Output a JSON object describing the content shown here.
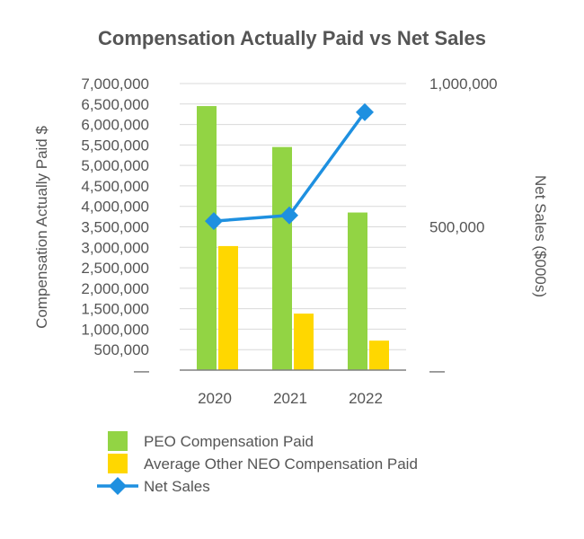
{
  "chart_data": {
    "type": "bar",
    "title": "Compensation Actually Paid vs Net Sales",
    "categories": [
      "2020",
      "2021",
      "2022"
    ],
    "ylabel": "Compensation Actually Paid $",
    "y2label": "Net Sales ($000s)",
    "ylim": [
      0,
      7000000
    ],
    "y2lim": [
      0,
      1000000
    ],
    "y_ticks": [
      "—",
      "500,000",
      "1,000,000",
      "1,500,000",
      "2,000,000",
      "2,500,000",
      "3,000,000",
      "3,500,000",
      "4,000,000",
      "4,500,000",
      "5,000,000",
      "5,500,000",
      "6,000,000",
      "6,500,000",
      "7,000,000"
    ],
    "y2_ticks": [
      "—",
      "500,000",
      "1,000,000"
    ],
    "grid": true,
    "legend_position": "bottom",
    "series": [
      {
        "name": "PEO Compensation Paid",
        "type": "bar",
        "axis": "left",
        "color": "#92d444",
        "values": [
          6450000,
          5450000,
          3850000
        ]
      },
      {
        "name": "Average Other NEO Compensation Paid",
        "type": "bar",
        "axis": "left",
        "color": "#ffd700",
        "values": [
          3030000,
          1380000,
          720000
        ]
      },
      {
        "name": "Net Sales",
        "type": "line",
        "axis": "right",
        "color": "#1e90e0",
        "marker": "diamond",
        "values": [
          520000,
          540000,
          900000
        ]
      }
    ]
  }
}
